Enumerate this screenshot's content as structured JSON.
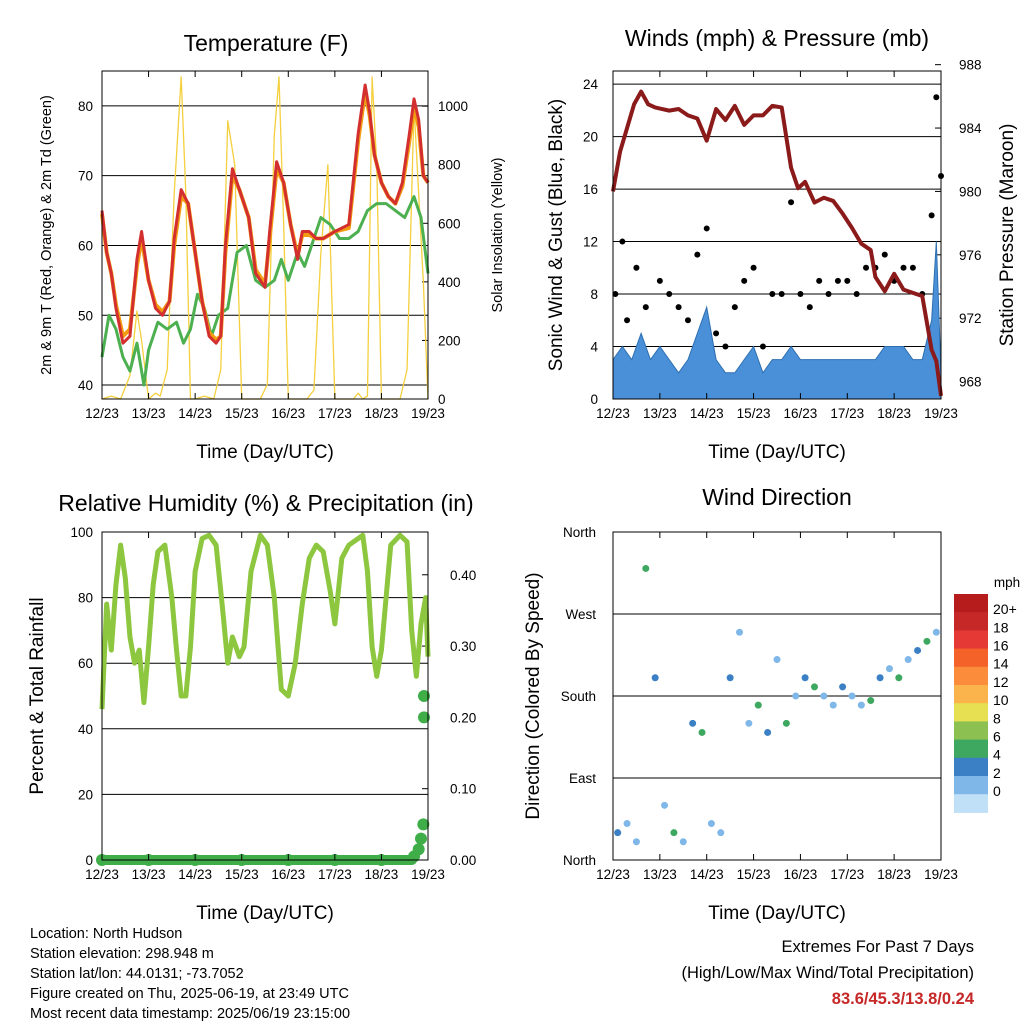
{
  "chart_data": [
    {
      "type": "line",
      "title": "Temperature (F)",
      "xlabel": "Time (Day/UTC)",
      "ylabel": "2m & 9m T (Red, Orange) & 2m Td (Green)",
      "y2label": "Solar Insolation (Yellow)",
      "x_ticks": [
        "12/23",
        "13/23",
        "14/23",
        "15/23",
        "16/23",
        "17/23",
        "18/23",
        "19/23"
      ],
      "y_ticks": [
        40,
        50,
        60,
        70,
        80
      ],
      "y2_ticks": [
        0,
        200,
        400,
        600,
        800,
        1000
      ],
      "ylim": [
        38,
        85
      ],
      "y2lim": [
        0,
        1120
      ],
      "xlim": [
        0,
        7
      ],
      "series": [
        {
          "color": "#d32f2f",
          "x": [
            0,
            0.1,
            0.2,
            0.3,
            0.45,
            0.6,
            0.75,
            0.85,
            1.0,
            1.15,
            1.3,
            1.45,
            1.55,
            1.7,
            1.85,
            2.0,
            2.15,
            2.3,
            2.45,
            2.55,
            2.65,
            2.8,
            2.95,
            3.05,
            3.15,
            3.3,
            3.5,
            3.6,
            3.75,
            3.9,
            4.05,
            4.2,
            4.3,
            4.45,
            4.6,
            4.75,
            5.0,
            5.3,
            5.5,
            5.65,
            5.75,
            5.85,
            6.0,
            6.15,
            6.3,
            6.45,
            6.6,
            6.7,
            6.8,
            6.9,
            7.0
          ],
          "values": [
            65,
            59,
            56,
            51,
            46,
            47,
            58,
            62,
            55,
            51,
            50,
            52,
            61,
            68,
            66,
            59,
            52,
            47,
            46,
            47,
            60,
            71,
            68,
            66,
            64,
            56,
            54,
            62,
            72,
            69,
            63,
            58,
            62,
            62,
            61,
            61,
            62,
            63,
            76,
            83,
            79,
            73,
            69,
            67,
            66,
            69,
            76,
            81,
            78,
            70,
            69
          ]
        },
        {
          "color": "#f39c12",
          "x": [
            0,
            0.1,
            0.2,
            0.3,
            0.45,
            0.6,
            0.75,
            0.85,
            1.0,
            1.15,
            1.3,
            1.45,
            1.55,
            1.7,
            1.85,
            2.0,
            2.15,
            2.3,
            2.45,
            2.55,
            2.65,
            2.8,
            2.95,
            3.05,
            3.15,
            3.3,
            3.5,
            3.6,
            3.75,
            3.9,
            4.05,
            4.2,
            4.3,
            4.45,
            4.6,
            4.75,
            5.0,
            5.3,
            5.5,
            5.65,
            5.75,
            5.85,
            6.0,
            6.15,
            6.3,
            6.45,
            6.6,
            6.7,
            6.8,
            6.9,
            7.0
          ],
          "values": [
            64.5,
            59,
            56,
            51.5,
            47,
            48,
            57,
            61,
            55,
            51.5,
            50.5,
            52,
            60,
            67,
            66,
            59,
            52,
            47.5,
            46.5,
            47,
            59,
            70,
            68,
            66,
            64,
            56.5,
            54.5,
            61,
            71,
            69,
            63,
            58.5,
            61.5,
            61.5,
            61,
            61,
            62,
            62.5,
            75,
            82,
            78.5,
            73,
            69,
            67,
            66,
            68.5,
            75,
            80,
            77,
            70,
            69
          ]
        },
        {
          "color": "#4caf50",
          "x": [
            0,
            0.15,
            0.3,
            0.45,
            0.6,
            0.75,
            0.9,
            1.0,
            1.2,
            1.4,
            1.6,
            1.75,
            1.9,
            2.05,
            2.2,
            2.35,
            2.5,
            2.7,
            2.9,
            3.1,
            3.3,
            3.5,
            3.7,
            3.85,
            4.0,
            4.2,
            4.35,
            4.5,
            4.7,
            4.9,
            5.1,
            5.3,
            5.5,
            5.7,
            5.9,
            6.1,
            6.3,
            6.5,
            6.7,
            6.85,
            7.0
          ],
          "values": [
            44,
            50,
            48,
            44,
            42,
            46,
            40,
            45,
            49,
            48,
            49,
            46,
            48,
            53,
            51,
            47,
            50,
            51,
            59,
            60,
            55,
            54,
            55,
            58,
            55,
            59,
            57,
            60,
            64,
            63,
            61,
            61,
            62,
            65,
            66,
            66,
            65,
            64,
            67,
            64,
            56
          ]
        },
        {
          "color": "#f4d03f",
          "x": [
            0,
            0.2,
            0.4,
            0.6,
            0.75,
            0.85,
            1.0,
            1.15,
            1.25,
            1.4,
            1.55,
            1.7,
            1.8,
            1.9,
            2.0,
            2.2,
            2.4,
            2.55,
            2.7,
            2.85,
            3.0,
            3.2,
            3.4,
            3.55,
            3.7,
            3.8,
            3.9,
            4.0,
            4.2,
            4.4,
            4.55,
            4.7,
            4.85,
            5.0,
            5.2,
            5.4,
            5.5,
            5.6,
            5.7,
            5.8,
            5.9,
            6.0,
            6.2,
            6.4,
            6.55,
            6.7,
            6.8,
            6.9,
            7.0
          ],
          "values": [
            0,
            10,
            0,
            80,
            300,
            200,
            0,
            20,
            10,
            100,
            700,
            1100,
            700,
            0,
            0,
            10,
            0,
            100,
            950,
            800,
            0,
            0,
            0,
            50,
            900,
            1100,
            600,
            0,
            0,
            0,
            30,
            500,
            800,
            0,
            0,
            0,
            20,
            0,
            10,
            1100,
            800,
            0,
            0,
            0,
            100,
            1000,
            700,
            400,
            0
          ]
        }
      ]
    },
    {
      "type": "scatter",
      "title": "Winds (mph) & Pressure (mb)",
      "xlabel": "Time (Day/UTC)",
      "ylabel": "Sonic Wind & Gust (Blue, Black)",
      "y2label": "Station Pressure (Maroon)",
      "x_ticks": [
        "12/23",
        "13/23",
        "14/23",
        "15/23",
        "16/23",
        "17/23",
        "18/23",
        "19/23"
      ],
      "y_ticks": [
        0,
        4,
        8,
        12,
        16,
        20,
        24
      ],
      "y2_ticks": [
        968,
        972,
        976,
        980,
        984,
        988
      ],
      "ylim": [
        0,
        25
      ],
      "y2lim": [
        966.9,
        987.6
      ],
      "xlim": [
        0,
        7
      ],
      "series": [
        {
          "name": "",
          "color": "#8b1a1a",
          "type": "line",
          "x": [
            0,
            0.15,
            0.3,
            0.45,
            0.6,
            0.75,
            0.9,
            1.05,
            1.2,
            1.4,
            1.6,
            1.8,
            2.0,
            2.2,
            2.4,
            2.6,
            2.8,
            3.0,
            3.2,
            3.4,
            3.6,
            3.8,
            3.95,
            4.1,
            4.3,
            4.5,
            4.7,
            4.9,
            5.1,
            5.3,
            5.5,
            5.6,
            5.8,
            6.0,
            6.2,
            6.4,
            6.6,
            6.8,
            6.9,
            7.0
          ],
          "values": [
            980,
            982.5,
            984,
            985.5,
            986.3,
            985.5,
            985.3,
            985.2,
            985.1,
            985.2,
            984.8,
            984.6,
            983.2,
            985.2,
            984.5,
            985.4,
            984.2,
            984.8,
            984.8,
            985.4,
            985.3,
            981.5,
            980.2,
            980.6,
            979.3,
            979.6,
            979.4,
            978.6,
            977.7,
            976.7,
            976.3,
            974.6,
            973.7,
            974.8,
            973.8,
            973.6,
            973.4,
            970.0,
            969.3,
            967.1
          ]
        },
        {
          "name": "",
          "color": "#000000",
          "type": "scatter",
          "x": [
            0.05,
            0.2,
            0.3,
            0.5,
            0.7,
            1.0,
            1.2,
            1.4,
            1.6,
            1.8,
            2.0,
            2.2,
            2.4,
            2.6,
            2.8,
            3.0,
            3.2,
            3.4,
            3.6,
            3.8,
            4.0,
            4.2,
            4.4,
            4.6,
            4.8,
            5.0,
            5.2,
            5.4,
            5.6,
            5.8,
            6.0,
            6.2,
            6.4,
            6.6,
            6.8,
            6.9,
            7.0
          ],
          "values": [
            8,
            12,
            6,
            10,
            7,
            9,
            8,
            7,
            6,
            11,
            13,
            5,
            4,
            7,
            9,
            10,
            4,
            8,
            8,
            15,
            8,
            7,
            9,
            8,
            9,
            9,
            8,
            10,
            10,
            11,
            9,
            10,
            10,
            8,
            14,
            23,
            17
          ]
        },
        {
          "name": "",
          "color": "#4a90d9",
          "type": "area",
          "x": [
            0,
            0.2,
            0.4,
            0.6,
            0.8,
            1.0,
            1.2,
            1.4,
            1.6,
            1.8,
            2.0,
            2.2,
            2.4,
            2.6,
            2.8,
            3.0,
            3.2,
            3.4,
            3.6,
            3.8,
            4.0,
            4.2,
            4.4,
            4.6,
            4.8,
            5.0,
            5.2,
            5.4,
            5.6,
            5.8,
            6.0,
            6.2,
            6.4,
            6.6,
            6.8,
            6.9,
            7.0
          ],
          "values": [
            3,
            4,
            3,
            5,
            3,
            4,
            3,
            2,
            3,
            5,
            7,
            3,
            2,
            2,
            3,
            4,
            2,
            3,
            3,
            4,
            3,
            3,
            3,
            3,
            3,
            3,
            3,
            3,
            3,
            4,
            4,
            4,
            3,
            3,
            6,
            12,
            2
          ]
        }
      ]
    },
    {
      "type": "line",
      "title": "Relative Humidity (%) & Precipitation (in)",
      "xlabel": "Time (Day/UTC)",
      "ylabel": "Percent & Total Rainfall",
      "x_ticks": [
        "12/23",
        "13/23",
        "14/23",
        "15/23",
        "16/23",
        "17/23",
        "18/23",
        "19/23"
      ],
      "y_ticks": [
        0,
        20,
        40,
        60,
        80,
        100
      ],
      "y2_ticks": [
        "0.00",
        "0.10",
        "0.20",
        "0.30",
        "0.40"
      ],
      "ylim": [
        0,
        100
      ],
      "y2lim": [
        0,
        0.46
      ],
      "xlim": [
        0,
        7
      ],
      "series": [
        {
          "color": "#8dc63f",
          "x": [
            0,
            0.1,
            0.2,
            0.3,
            0.4,
            0.5,
            0.6,
            0.7,
            0.8,
            0.9,
            1.0,
            1.1,
            1.2,
            1.35,
            1.5,
            1.6,
            1.7,
            1.8,
            1.9,
            2.0,
            2.15,
            2.3,
            2.45,
            2.6,
            2.7,
            2.8,
            2.95,
            3.05,
            3.2,
            3.4,
            3.55,
            3.7,
            3.85,
            4.0,
            4.15,
            4.3,
            4.45,
            4.6,
            4.75,
            4.9,
            5.0,
            5.15,
            5.3,
            5.5,
            5.6,
            5.7,
            5.8,
            5.9,
            6.0,
            6.2,
            6.4,
            6.55,
            6.65,
            6.75,
            6.85,
            6.95,
            7.0
          ],
          "values": [
            46,
            78,
            64,
            84,
            96,
            86,
            68,
            60,
            64,
            48,
            65,
            84,
            94,
            96,
            80,
            64,
            50,
            50,
            65,
            88,
            98,
            99,
            96,
            75,
            60,
            68,
            62,
            65,
            88,
            99,
            96,
            80,
            52,
            50,
            60,
            78,
            92,
            96,
            94,
            82,
            72,
            92,
            96,
            98,
            99,
            88,
            65,
            56,
            64,
            96,
            99,
            97,
            70,
            56,
            72,
            80,
            62
          ]
        },
        {
          "color": "#3fae49",
          "type": "scatter",
          "x": [
            0,
            1,
            2,
            3,
            4,
            5,
            6,
            6.7,
            6.8,
            6.85,
            6.9,
            6.95,
            7.0
          ],
          "values": [
            0,
            0,
            0,
            0,
            0,
            0,
            0,
            0.005,
            0.015,
            0.03,
            0.05,
            0.2,
            0.23
          ]
        }
      ]
    },
    {
      "type": "scatter",
      "title": "Wind Direction",
      "xlabel": "Time (Day/UTC)",
      "ylabel": "Direction (Colored By Speed)",
      "x_ticks": [
        "12/23",
        "13/23",
        "14/23",
        "15/23",
        "16/23",
        "17/23",
        "18/23",
        "19/23"
      ],
      "y_ticks": [
        "North",
        "East",
        "South",
        "West",
        "North"
      ],
      "xlim": [
        0,
        7
      ],
      "legend_title": "mph",
      "legend_labels": [
        "20+",
        "18",
        "16",
        "14",
        "12",
        "10",
        "8",
        "6",
        "4",
        "2",
        "0"
      ],
      "legend_colors": [
        "#b71c1c",
        "#c62828",
        "#e53935",
        "#f4622a",
        "#fb8c3c",
        "#fbb34c",
        "#e6e052",
        "#8cc152",
        "#3fa860",
        "#3b7fc4",
        "#7fb8e8",
        "#bfe0f6"
      ],
      "series": [
        {
          "name": "",
          "x": [
            0.1,
            0.3,
            0.5,
            0.7,
            0.9,
            1.1,
            1.3,
            1.5,
            1.7,
            1.9,
            2.1,
            2.3,
            2.5,
            2.7,
            2.9,
            3.1,
            3.3,
            3.5,
            3.7,
            3.9,
            4.1,
            4.3,
            4.5,
            4.7,
            4.9,
            5.1,
            5.3,
            5.5,
            5.7,
            5.9,
            6.1,
            6.3,
            6.5,
            6.7,
            6.9
          ],
          "values": [
            30,
            40,
            20,
            320,
            200,
            60,
            30,
            20,
            150,
            140,
            40,
            30,
            200,
            250,
            150,
            170,
            140,
            220,
            150,
            180,
            200,
            190,
            180,
            170,
            190,
            180,
            170,
            175,
            200,
            210,
            200,
            220,
            230,
            240,
            250
          ]
        }
      ]
    }
  ],
  "info": {
    "location": "Location: North Hudson",
    "elevation": "Station elevation: 298.948 m",
    "latlon": "Station lat/lon: 44.0131; -73.7052",
    "created": "Figure created on Thu, 2025-06-19, at 23:49 UTC",
    "recent": "Most recent data timestamp: 2025/06/19 23:15:00"
  },
  "extremes": {
    "line1": "Extremes For Past 7 Days",
    "line2": "(High/Low/Max Wind/Total Precipitation)",
    "values": "83.6/45.3/13.8/0.24"
  }
}
